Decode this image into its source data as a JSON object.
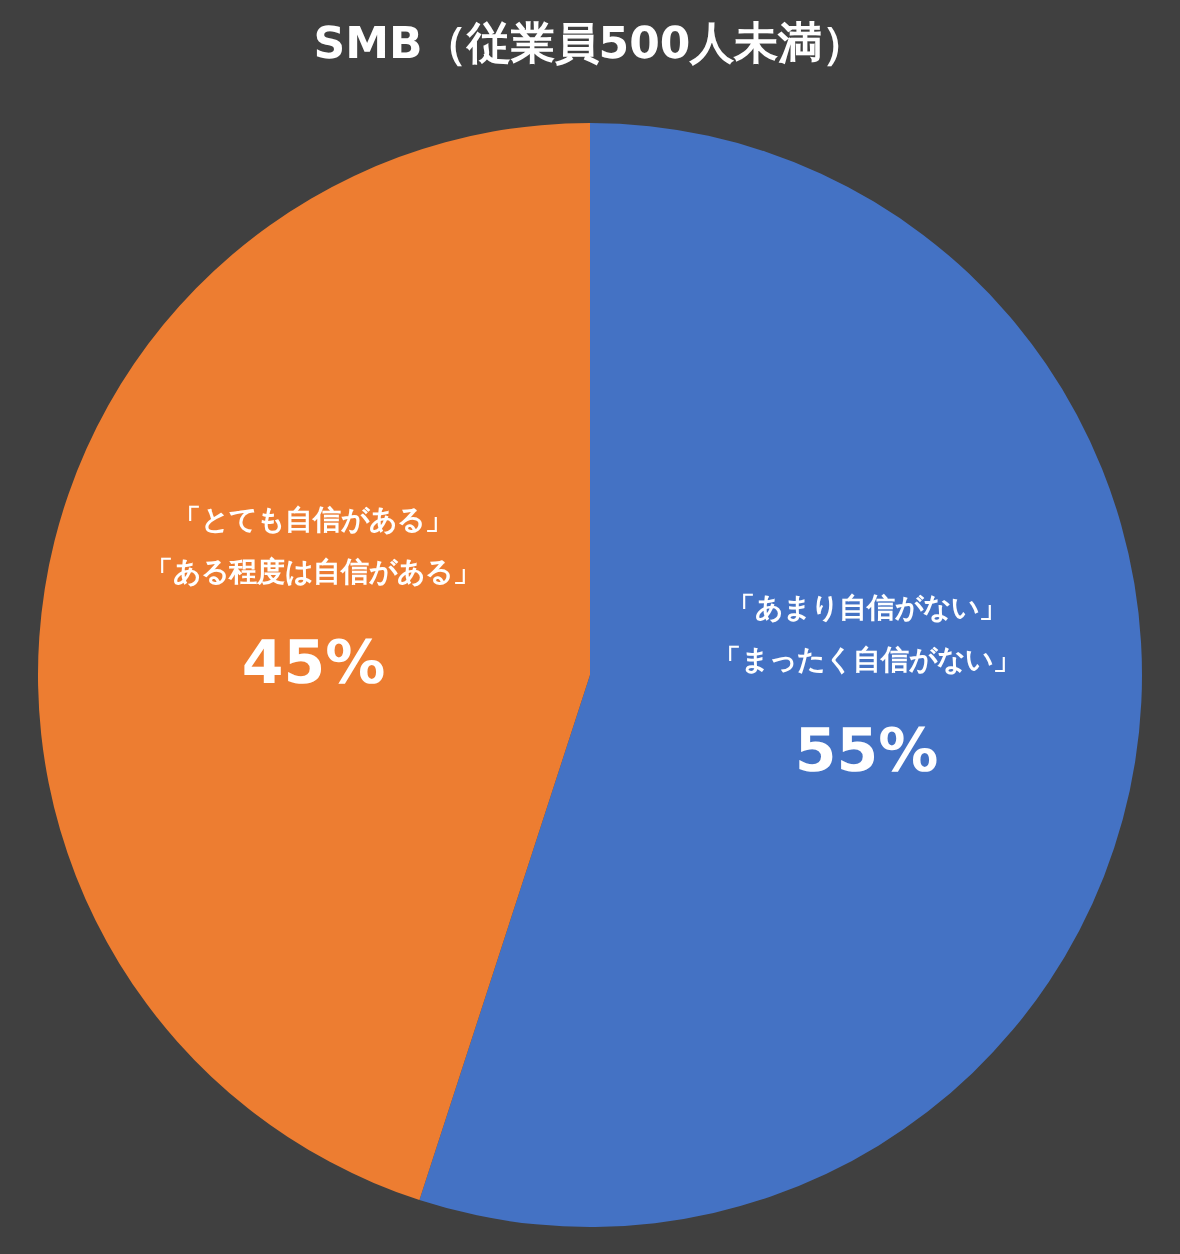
{
  "chart_data": {
    "type": "pie",
    "title": "SMB（従業員500人未満）",
    "categories": [
      "「あまり自信がない」「まったく自信がない」",
      "「とても自信がある」「ある程度は自信がある」"
    ],
    "values": [
      55,
      45
    ],
    "colors": [
      "#4472c4",
      "#ed7d31"
    ],
    "value_labels": [
      "55%",
      "45%"
    ]
  }
}
